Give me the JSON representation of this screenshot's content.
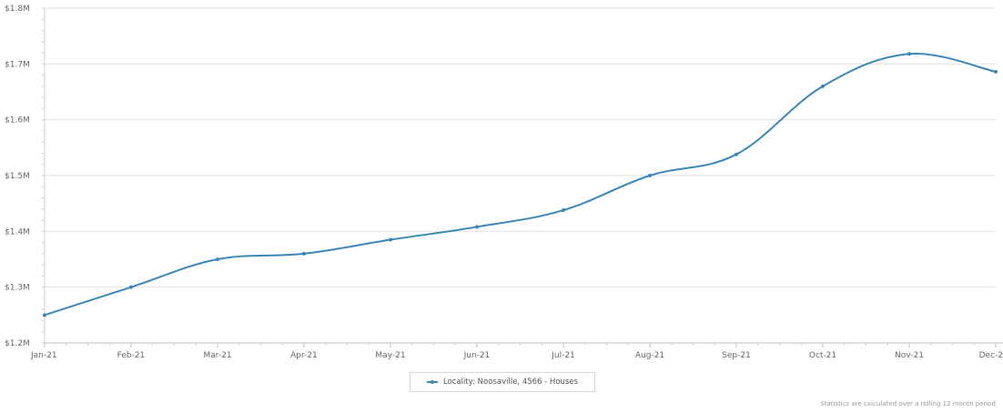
{
  "chart_data": {
    "type": "line",
    "title": "",
    "xlabel": "",
    "ylabel": "",
    "categories": [
      "Jan-21",
      "Feb-21",
      "Mar-21",
      "Apr-21",
      "May-21",
      "Jun-21",
      "Jul-21",
      "Aug-21",
      "Sep-21",
      "Oct-21",
      "Nov-21",
      "Dec-21"
    ],
    "x_tick_labels": [
      "Jan-21",
      "Feb-21",
      "Mar-21",
      "Apr-21",
      "May-21",
      "Jun-21",
      "Jul-21",
      "Aug-21",
      "Sep-21",
      "Oct-21",
      "Nov-21",
      "Dec-2"
    ],
    "y_ticks": [
      1200000,
      1300000,
      1400000,
      1500000,
      1600000,
      1700000,
      1800000
    ],
    "y_tick_labels": [
      "$1.2M",
      "$1.3M",
      "$1.4M",
      "$1.5M",
      "$1.6M",
      "$1.7M",
      "$1.8M"
    ],
    "ylim": [
      1200000,
      1800000
    ],
    "grid": true,
    "legend_position": "bottom-center",
    "series": [
      {
        "name": "Locality: Noosaville, 4566 - Houses",
        "color": "#3a88b8",
        "values": [
          1250000,
          1300000,
          1350000,
          1360000,
          1385000,
          1408000,
          1438000,
          1500000,
          1538000,
          1660000,
          1718000,
          1686000
        ]
      }
    ]
  },
  "footnote": "Statistics are calculated over a rolling 12 month period"
}
